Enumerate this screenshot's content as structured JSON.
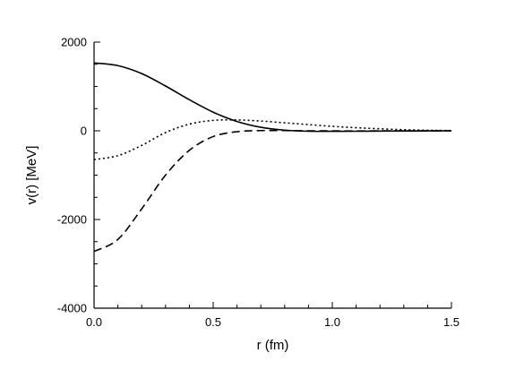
{
  "chart_data": {
    "type": "line",
    "xlabel": "r (fm)",
    "ylabel": "v(r) [MeV]",
    "xlim": [
      0,
      1.5
    ],
    "ylim": [
      -4000,
      2000
    ],
    "xticks": [
      0.0,
      0.5,
      1.0,
      1.5
    ],
    "xtick_labels": [
      "0.0",
      "0.5",
      "1.0",
      "1.5"
    ],
    "yticks": [
      -4000,
      -2000,
      0,
      2000
    ],
    "ytick_labels": [
      "-4000",
      "-2000",
      "0",
      "2000"
    ],
    "grid": false,
    "legend": "none",
    "series": [
      {
        "style": "solid",
        "color": "#000000",
        "x": [
          0.0,
          0.1,
          0.2,
          0.3,
          0.4,
          0.5,
          0.6,
          0.7,
          0.8,
          0.9,
          1.0,
          1.1,
          1.2,
          1.3,
          1.4,
          1.5
        ],
        "y": [
          1530,
          1470,
          1290,
          1010,
          700,
          420,
          210,
          80,
          15,
          -10,
          -12,
          -10,
          -6,
          -4,
          -2,
          0
        ]
      },
      {
        "style": "dotted",
        "color": "#000000",
        "x": [
          0.0,
          0.1,
          0.2,
          0.3,
          0.4,
          0.5,
          0.6,
          0.7,
          0.8,
          0.9,
          1.0,
          1.1,
          1.2,
          1.3,
          1.4,
          1.5
        ],
        "y": [
          -650,
          -560,
          -330,
          -40,
          150,
          235,
          245,
          220,
          180,
          140,
          100,
          70,
          45,
          25,
          12,
          5
        ]
      },
      {
        "style": "dashed",
        "color": "#000000",
        "x": [
          0.0,
          0.1,
          0.2,
          0.3,
          0.4,
          0.5,
          0.6,
          0.7,
          0.8,
          0.9,
          1.0,
          1.1,
          1.2,
          1.3,
          1.4,
          1.5
        ],
        "y": [
          -2720,
          -2450,
          -1760,
          -1000,
          -440,
          -130,
          -20,
          5,
          5,
          0,
          -2,
          -3,
          -2,
          -1,
          0,
          0
        ]
      }
    ]
  }
}
